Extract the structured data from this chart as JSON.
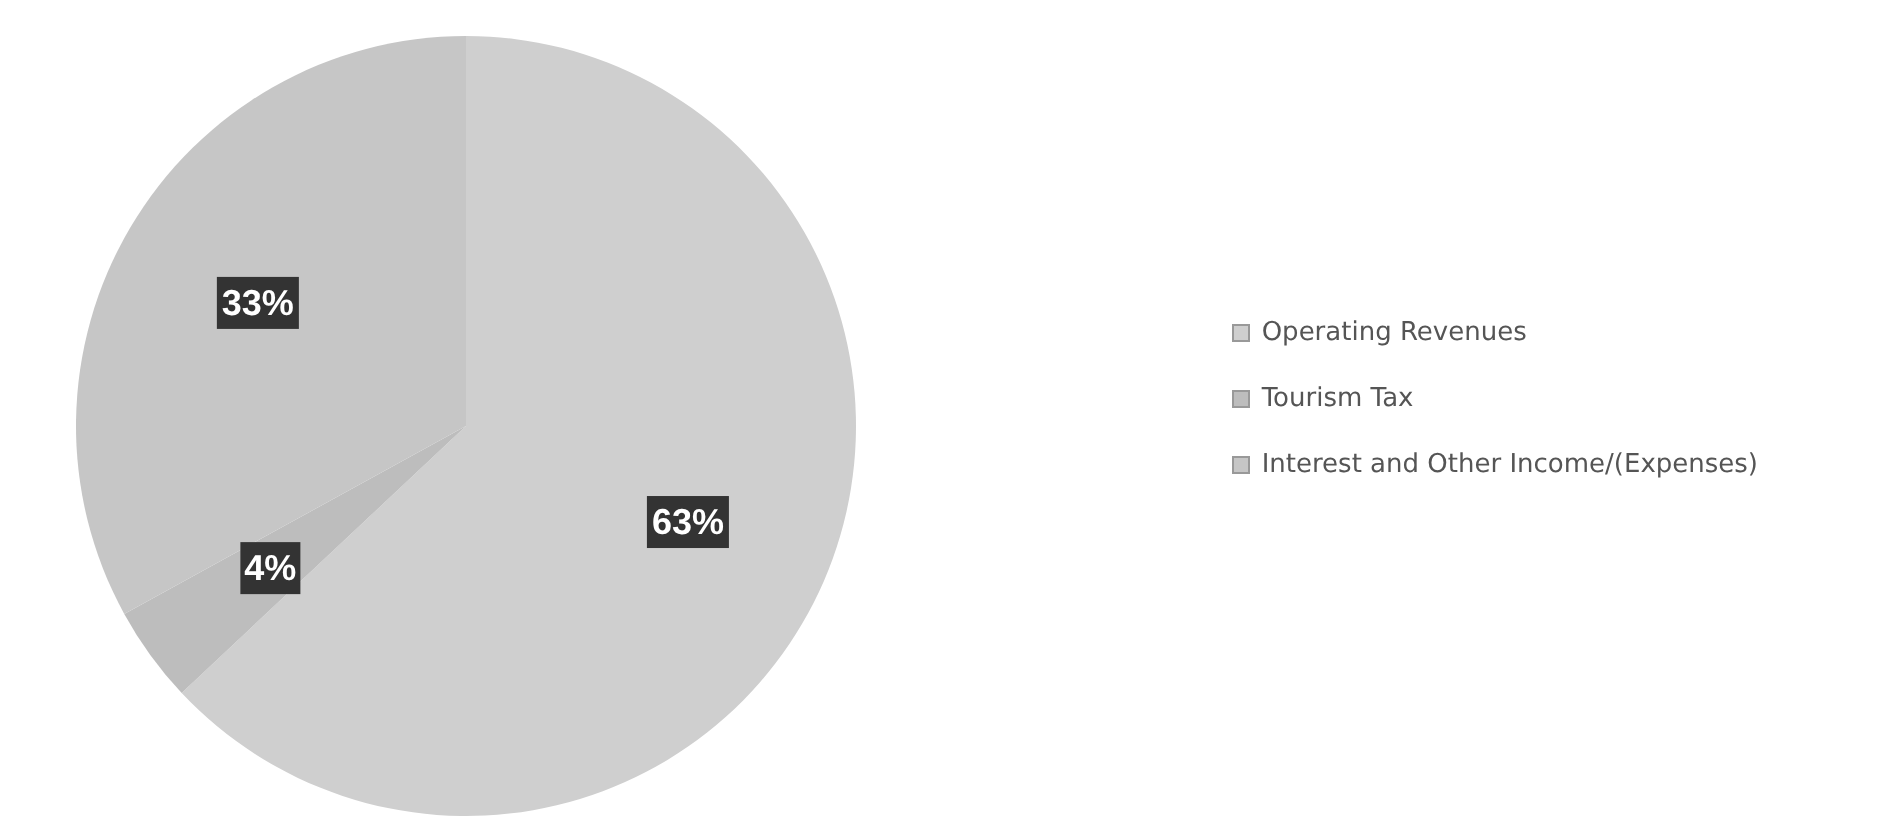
{
  "chart_data": {
    "type": "pie",
    "categories": [
      "Operating Revenues",
      "Tourism Tax",
      "Interest and Other Income/(Expenses)"
    ],
    "values": [
      63,
      4,
      33
    ],
    "colors": [
      "#cfcfcf",
      "#bdbdbd",
      "#c6c6c6"
    ],
    "value_labels": [
      "63%",
      "4%",
      "33%"
    ],
    "legend": "right"
  }
}
